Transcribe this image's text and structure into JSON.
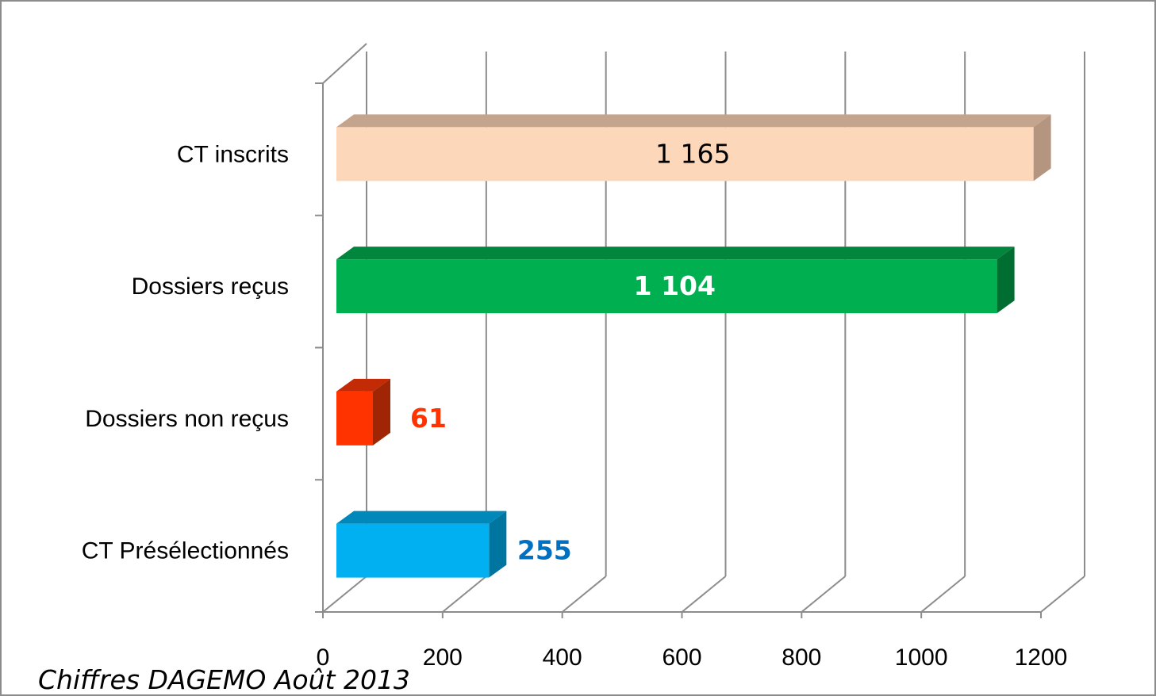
{
  "chart_data": {
    "type": "bar",
    "orientation": "horizontal",
    "style": "3d",
    "categories": [
      "CT inscrits",
      "Dossiers reçus",
      "Dossiers  non reçus",
      "CT Présélectionnés"
    ],
    "values": [
      1165,
      1104,
      61,
      255
    ],
    "data_labels": [
      "1 165",
      "1 104",
      "61",
      "255"
    ],
    "bar_colors": [
      {
        "front": "#FDD7BA",
        "top": "#C4A48D",
        "side": "#B49580"
      },
      {
        "front": "#00B050",
        "top": "#02853C",
        "side": "#006E30"
      },
      {
        "front": "#FF3300",
        "top": "#C22B05",
        "side": "#A02505"
      },
      {
        "front": "#00B0F0",
        "top": "#0088BA",
        "side": "#0075A0"
      }
    ],
    "label_colors": [
      "#000000",
      "#FFFFFF",
      "#FF3300",
      "#0070C0"
    ],
    "xlim": [
      0,
      1200
    ],
    "x_ticks": [
      0,
      200,
      400,
      600,
      800,
      1000,
      1200
    ],
    "grid": "vertical",
    "legend": "none"
  },
  "source_note": "Chiffres  DAGEMO Août 2013"
}
